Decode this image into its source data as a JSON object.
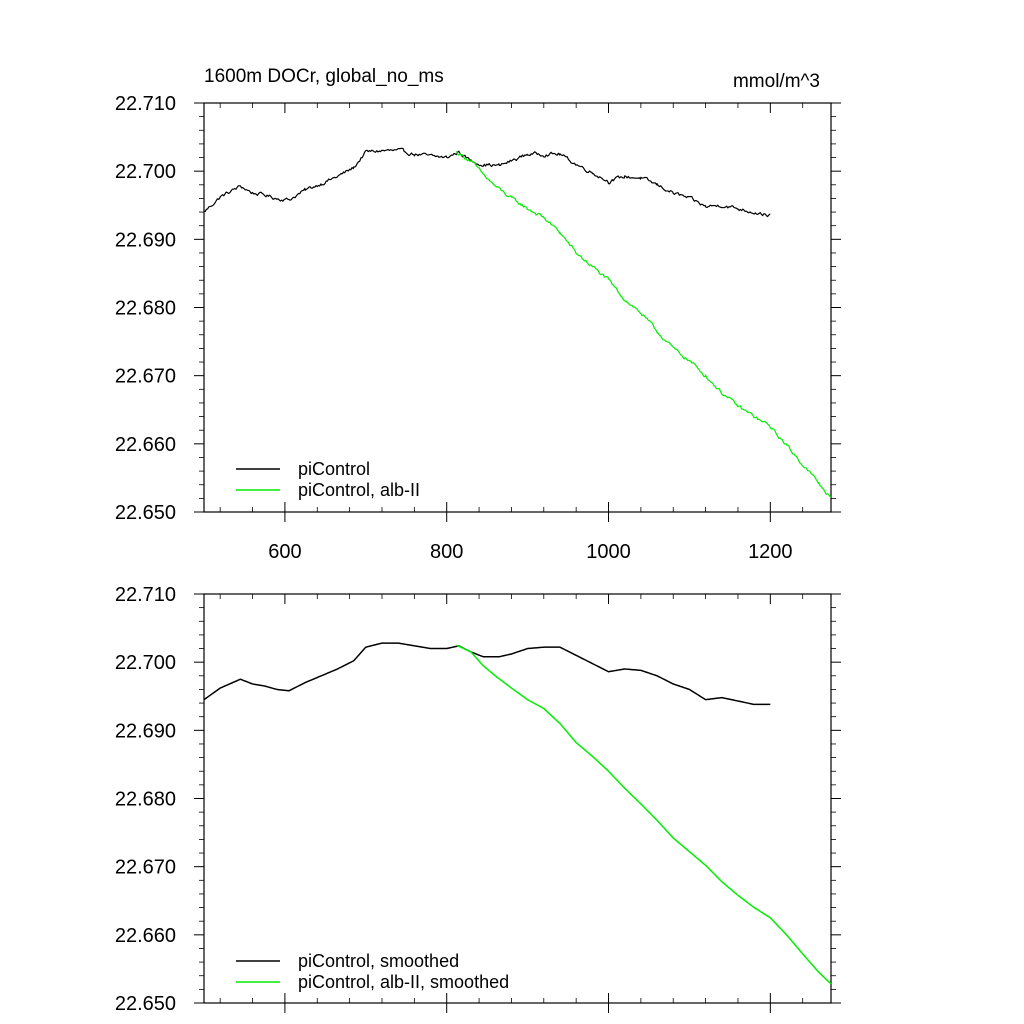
{
  "chart_data": [
    {
      "type": "line",
      "title": "1600m DOCr, global_no_ms",
      "units": "mmol/m^3",
      "xlim": [
        500,
        1275
      ],
      "ylim": [
        22.65,
        22.71
      ],
      "xticks": [
        600,
        800,
        1000,
        1200
      ],
      "xtick_labels": [
        "600",
        "800",
        "1000",
        "1200"
      ],
      "yticks": [
        22.65,
        22.66,
        22.67,
        22.68,
        22.69,
        22.7,
        22.71
      ],
      "ytick_labels": [
        "22.650",
        "22.660",
        "22.670",
        "22.680",
        "22.690",
        "22.700",
        "22.710"
      ],
      "legend_position": "bottom-left",
      "series": [
        {
          "name": "piControl",
          "color": "#000000",
          "noisy": true,
          "x": [
            500,
            520,
            545,
            560,
            575,
            590,
            605,
            625,
            645,
            665,
            685,
            700,
            720,
            740,
            760,
            780,
            800,
            815,
            830,
            845,
            865,
            880,
            900,
            920,
            940,
            960,
            980,
            1000,
            1020,
            1040,
            1060,
            1080,
            1100,
            1120,
            1140,
            1160,
            1180,
            1200
          ],
          "values": [
            22.694,
            22.6962,
            22.6978,
            22.6968,
            22.6965,
            22.696,
            22.6958,
            22.6972,
            22.6982,
            22.6992,
            22.7005,
            22.7028,
            22.703,
            22.703,
            22.7025,
            22.7022,
            22.702,
            22.7028,
            22.7015,
            22.701,
            22.7008,
            22.7015,
            22.7025,
            22.7025,
            22.7025,
            22.701,
            22.6998,
            22.6985,
            22.6992,
            22.699,
            22.698,
            22.6968,
            22.696,
            22.6948,
            22.695,
            22.6945,
            22.694,
            22.6935
          ]
        },
        {
          "name": "piControl, alb-II",
          "color": "#00ee00",
          "noisy": true,
          "x": [
            812,
            830,
            845,
            860,
            880,
            900,
            920,
            940,
            960,
            980,
            1000,
            1020,
            1040,
            1060,
            1080,
            1100,
            1120,
            1140,
            1160,
            1180,
            1200,
            1220,
            1240,
            1260,
            1275
          ],
          "values": [
            22.7028,
            22.7015,
            22.6995,
            22.6978,
            22.696,
            22.6945,
            22.6932,
            22.691,
            22.688,
            22.686,
            22.684,
            22.6812,
            22.6792,
            22.6765,
            22.674,
            22.6722,
            22.67,
            22.6675,
            22.6655,
            22.664,
            22.6625,
            22.6598,
            22.657,
            22.6542,
            22.652
          ]
        }
      ]
    },
    {
      "type": "line",
      "title": "",
      "units": "",
      "xlim": [
        500,
        1275
      ],
      "ylim": [
        22.65,
        22.71
      ],
      "xticks": [
        600,
        800,
        1000,
        1200
      ],
      "xtick_labels": [],
      "yticks": [
        22.65,
        22.66,
        22.67,
        22.68,
        22.69,
        22.7,
        22.71
      ],
      "ytick_labels": [
        "22.650",
        "22.660",
        "22.670",
        "22.680",
        "22.690",
        "22.700",
        "22.710"
      ],
      "legend_position": "bottom-left",
      "series": [
        {
          "name": "piControl, smoothed",
          "color": "#000000",
          "noisy": false,
          "x": [
            500,
            520,
            545,
            560,
            575,
            590,
            605,
            625,
            645,
            665,
            685,
            700,
            720,
            740,
            760,
            780,
            800,
            815,
            830,
            845,
            865,
            880,
            900,
            920,
            940,
            960,
            980,
            1000,
            1020,
            1040,
            1060,
            1080,
            1100,
            1120,
            1140,
            1160,
            1180,
            1200
          ],
          "values": [
            22.6945,
            22.6962,
            22.6975,
            22.6968,
            22.6965,
            22.696,
            22.6958,
            22.697,
            22.698,
            22.699,
            22.7002,
            22.7022,
            22.7028,
            22.7028,
            22.7024,
            22.702,
            22.702,
            22.7024,
            22.7015,
            22.7008,
            22.7008,
            22.7012,
            22.702,
            22.7022,
            22.7022,
            22.701,
            22.6998,
            22.6986,
            22.699,
            22.6988,
            22.698,
            22.6968,
            22.696,
            22.6945,
            22.6948,
            22.6943,
            22.6938,
            22.6938
          ]
        },
        {
          "name": "piControl, alb-II, smoothed",
          "color": "#00ee00",
          "noisy": false,
          "x": [
            812,
            830,
            845,
            860,
            880,
            900,
            920,
            940,
            960,
            980,
            1000,
            1020,
            1040,
            1060,
            1080,
            1100,
            1120,
            1140,
            1160,
            1180,
            1200,
            1220,
            1240,
            1260,
            1275
          ],
          "values": [
            22.7025,
            22.7015,
            22.6995,
            22.698,
            22.6962,
            22.6945,
            22.6932,
            22.691,
            22.6882,
            22.6862,
            22.684,
            22.6815,
            22.6792,
            22.6768,
            22.6742,
            22.6722,
            22.6702,
            22.6678,
            22.6658,
            22.664,
            22.6625,
            22.66,
            22.6572,
            22.6545,
            22.6528
          ]
        }
      ]
    }
  ]
}
